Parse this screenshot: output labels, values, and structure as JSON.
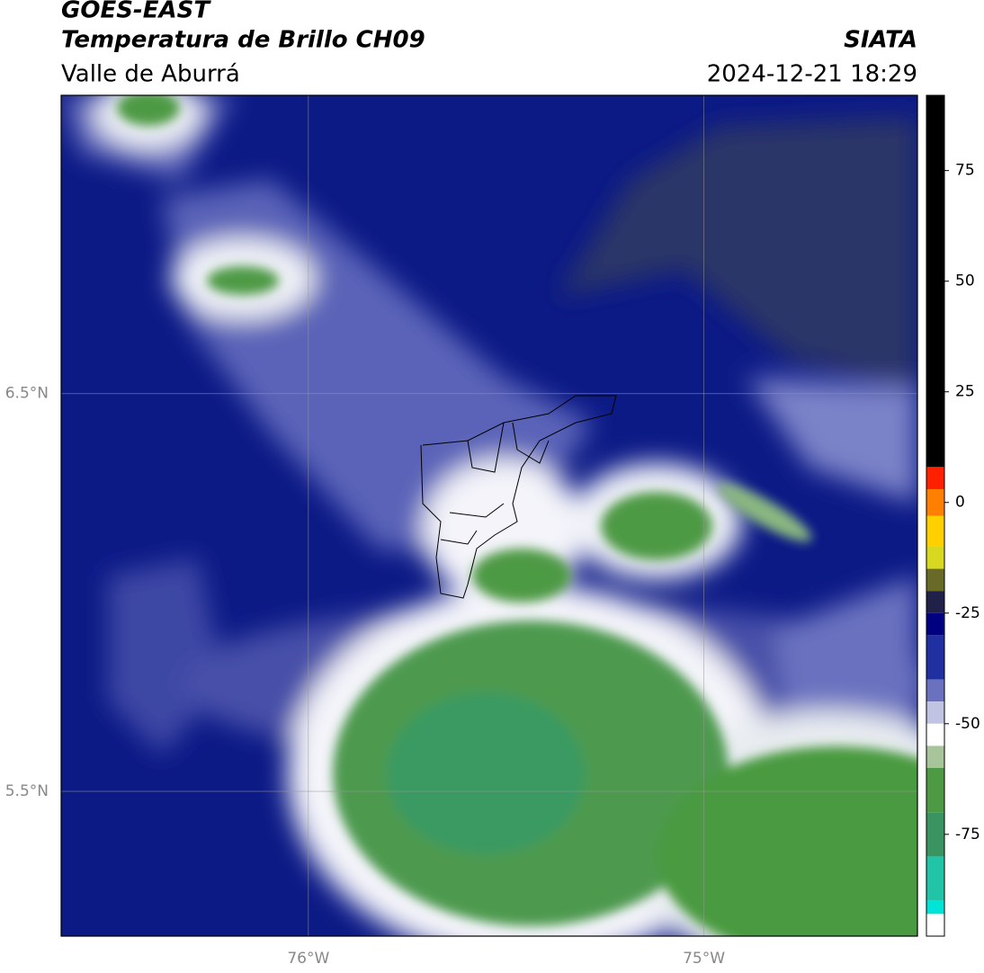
{
  "header": {
    "title": "GOES-EAST",
    "subtitle": "Temperatura de Brillo CH09",
    "region": "Valle de Aburrá",
    "source": "SIATA",
    "datetime": "2024-12-21 18:29"
  },
  "map": {
    "xlim": [
      -76.625,
      -74.46
    ],
    "ylim": [
      5.136,
      7.25
    ],
    "xticks": [
      {
        "value": -76,
        "label": "76°W"
      },
      {
        "value": -75,
        "label": "75°W"
      }
    ],
    "yticks": [
      {
        "value": 6.5,
        "label": "6.5°N"
      },
      {
        "value": 5.5,
        "label": "5.5°N"
      }
    ],
    "grid": true
  },
  "colorbar": {
    "ylim": [
      -98,
      92
    ],
    "yticks": [
      -75,
      -50,
      -25,
      0,
      25,
      50,
      75
    ],
    "levels": [
      92,
      8,
      3,
      -3,
      -10,
      -15,
      -20,
      -25,
      -30,
      -40,
      -45,
      -50,
      -55,
      -60,
      -70,
      -80,
      -90,
      -93,
      -98
    ],
    "colors": [
      "#000000",
      "#ff2000",
      "#ff8000",
      "#ffd000",
      "#d8d820",
      "#6a6a28",
      "#202048",
      "#000080",
      "#2030a0",
      "#6a72c0",
      "#c0c4e2",
      "#ffffff",
      "#a8c49a",
      "#4e9a44",
      "#3a9462",
      "#22c4a8",
      "#00e4d8",
      "#ffffff"
    ]
  }
}
